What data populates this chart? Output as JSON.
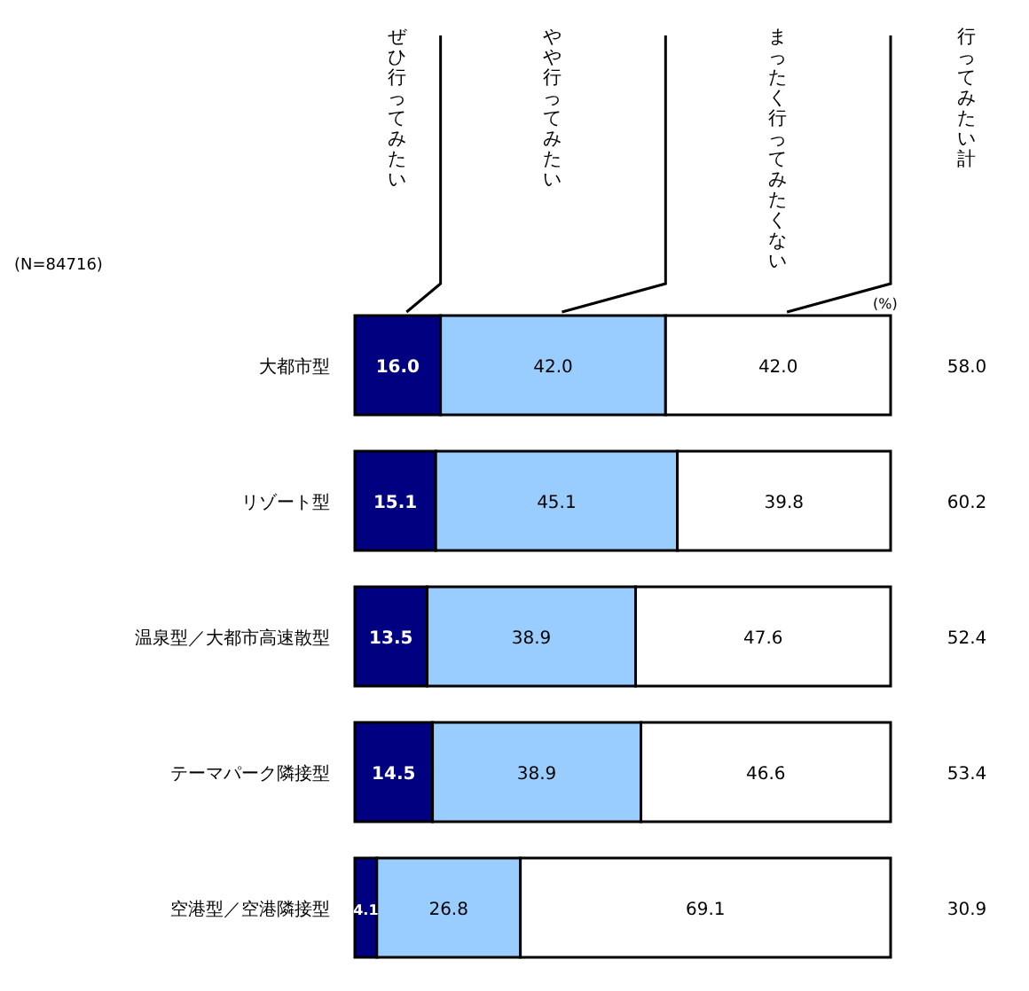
{
  "chart_data": {
    "type": "bar",
    "orientation": "horizontal",
    "stacked": true,
    "legend": "top",
    "xlim": [
      0,
      100
    ],
    "categories": [
      "大都市型",
      "リゾート型",
      "温泉型／大都市高速散型",
      "テーマパーク隣接型",
      "空港型／空港隣接型"
    ],
    "series": [
      {
        "name": "ぜひ行ってみたい",
        "color": "#000080",
        "values": [
          16.0,
          15.1,
          13.5,
          14.5,
          4.1
        ],
        "value_labels": [
          "16.0",
          "15.1",
          "13.5",
          "14.5",
          "4.1"
        ]
      },
      {
        "name": "やや行ってみたい",
        "color": "#99ccff",
        "values": [
          42.0,
          45.1,
          38.9,
          38.9,
          26.8
        ],
        "value_labels": [
          "42.0",
          "45.1",
          "38.9",
          "38.9",
          "26.8"
        ]
      },
      {
        "name": "まったく行ってみたくない",
        "color": "#ffffff",
        "values": [
          42.0,
          39.8,
          47.6,
          46.6,
          69.1
        ],
        "value_labels": [
          "42.0",
          "39.8",
          "47.6",
          "46.6",
          "69.1"
        ]
      }
    ],
    "annotations": [
      "行ってみたい計",
      "58.0",
      "60.2",
      "52.4",
      "53.4",
      "30.9",
      "(N=84716)",
      "(%)"
    ]
  }
}
